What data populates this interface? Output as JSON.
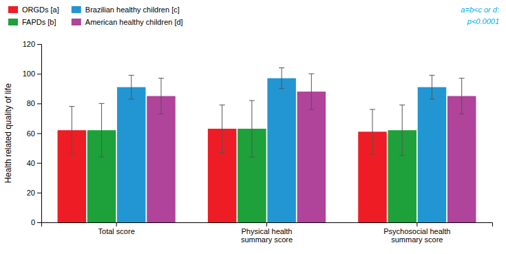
{
  "chart_data": {
    "type": "bar",
    "categories": [
      "Total score",
      "Physical health\nsummary score",
      "Psychosocial health\nsummary score"
    ],
    "series": [
      {
        "name": "ORGDs [a]",
        "color": "#ee1c25",
        "values": [
          62,
          63,
          61
        ],
        "errors": [
          16,
          16,
          15
        ]
      },
      {
        "name": "FAPDs [b]",
        "color": "#1ea03a",
        "values": [
          62,
          63,
          62
        ],
        "errors": [
          18,
          19,
          17
        ]
      },
      {
        "name": "Brazilian healthy children [c]",
        "color": "#2196d3",
        "values": [
          91,
          97,
          91
        ],
        "errors": [
          8,
          7,
          8
        ]
      },
      {
        "name": "American healthy children [d]",
        "color": "#b0439a",
        "values": [
          85,
          88,
          85
        ],
        "errors": [
          12,
          12,
          12
        ]
      }
    ],
    "ylabel": "Health related quality of life",
    "ylim": [
      0,
      120
    ],
    "yticks": [
      0,
      20,
      40,
      60,
      80,
      100,
      120
    ],
    "annotations": [
      {
        "text": "a=b<c or d:",
        "color": "#00aeef"
      },
      {
        "text": "p<0.0001",
        "color": "#00aeef"
      }
    ],
    "legend": "top left",
    "grid": false
  }
}
